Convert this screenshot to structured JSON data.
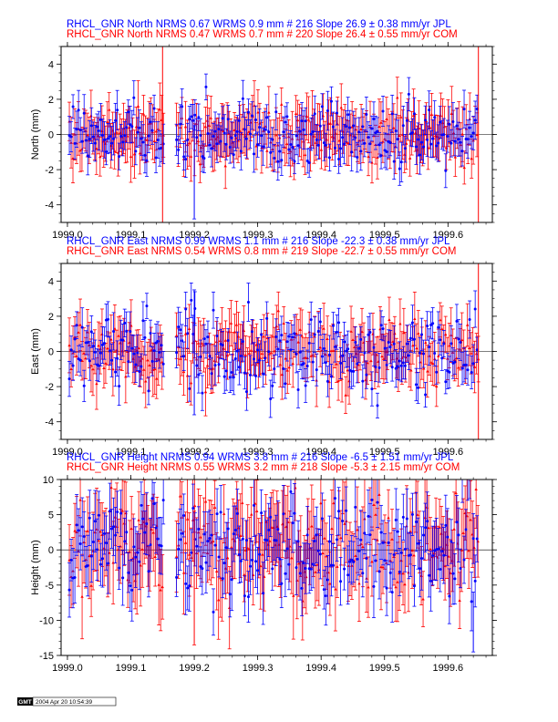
{
  "chart_data": [
    {
      "type": "scatter",
      "component": "North",
      "ylabel": "North (mm)",
      "xlim": [
        1998.99,
        1999.67
      ],
      "ylim": [
        -5,
        5
      ],
      "xticks": [
        "1999.0",
        "1999.1",
        "1999.2",
        "1999.3",
        "1999.4",
        "1999.5",
        "1999.6"
      ],
      "yticks": [
        "-4",
        "-2",
        "0",
        "2",
        "4"
      ],
      "series": [
        {
          "name": "JPL",
          "color": "#0000ff",
          "header": "RHCL_GNR North NRMS 0.67 WRMS  0.9 mm # 216 Slope   26.9 ±  0.38 mm/yr JPL",
          "n": 216,
          "wrms": 0.9,
          "sigma": 0.9,
          "x_start": 1999.003,
          "x_end": 1999.648,
          "gap": [
            1999.152,
            1999.172
          ]
        },
        {
          "name": "COM",
          "color": "#ff0000",
          "header": "RHCL_GNR North NRMS 0.47 WRMS  0.7 mm # 220 Slope   26.4 ±  0.55 mm/yr COM",
          "n": 220,
          "wrms": 0.7,
          "sigma": 1.25,
          "x_start": 1999.003,
          "x_end": 1999.648,
          "gap": [
            1999.152,
            1999.172
          ]
        }
      ],
      "outliers": [
        {
          "x": 1999.15,
          "series": "COM",
          "y_low": -5,
          "y_high": 5
        },
        {
          "x": 1999.648,
          "series": "COM",
          "y_low": -5,
          "y_high": 5
        },
        {
          "x": 1999.2,
          "series": "JPL",
          "y_low": -4.8,
          "y_high": 0.5
        }
      ]
    },
    {
      "type": "scatter",
      "component": "East",
      "ylabel": "East (mm)",
      "xlim": [
        1998.99,
        1999.67
      ],
      "ylim": [
        -5,
        5
      ],
      "xticks": [
        "1999.0",
        "1999.1",
        "1999.2",
        "1999.3",
        "1999.4",
        "1999.5",
        "1999.6"
      ],
      "yticks": [
        "-4",
        "-2",
        "0",
        "2",
        "4"
      ],
      "series": [
        {
          "name": "JPL",
          "color": "#0000ff",
          "header": "RHCL_GNR East NRMS 0.99 WRMS  1.1 mm # 216 Slope  -22.3 ±  0.38 mm/yr JPL",
          "n": 216,
          "wrms": 1.1,
          "sigma": 0.9,
          "x_start": 1999.003,
          "x_end": 1999.648,
          "gap": [
            1999.152,
            1999.172
          ]
        },
        {
          "name": "COM",
          "color": "#ff0000",
          "header": "RHCL_GNR East NRMS 0.54 WRMS  0.8 mm # 219 Slope  -22.7 ±  0.55 mm/yr COM",
          "n": 219,
          "wrms": 0.8,
          "sigma": 1.25,
          "x_start": 1999.003,
          "x_end": 1999.648,
          "gap": [
            1999.152,
            1999.172
          ]
        }
      ],
      "outliers": [
        {
          "x": 1999.648,
          "series": "COM",
          "y_low": -5,
          "y_high": 5
        },
        {
          "x": 1999.2,
          "series": "JPL",
          "y_low": -3.6,
          "y_high": 3.5
        }
      ]
    },
    {
      "type": "scatter",
      "component": "Height",
      "ylabel": "Height (mm)",
      "xlim": [
        1998.99,
        1999.67
      ],
      "ylim": [
        -15,
        10
      ],
      "xticks": [
        "1999.0",
        "1999.1",
        "1999.2",
        "1999.3",
        "1999.4",
        "1999.5",
        "1999.6"
      ],
      "yticks": [
        "-15",
        "-10",
        "-5",
        "0",
        "5",
        "10"
      ],
      "series": [
        {
          "name": "JPL",
          "color": "#0000ff",
          "header": "RHCL_GNR Height NRMS 0.94 WRMS  3.8 mm # 216 Slope   -6.5 ±  1.51 mm/yr JPL",
          "n": 216,
          "wrms": 3.8,
          "sigma": 3.6,
          "x_start": 1999.003,
          "x_end": 1999.648,
          "gap": [
            1999.152,
            1999.172
          ]
        },
        {
          "name": "COM",
          "color": "#ff0000",
          "header": "RHCL_GNR Height NRMS 0.55 WRMS  3.2 mm # 218 Slope   -5.3 ±  2.15 mm/yr COM",
          "n": 218,
          "wrms": 3.2,
          "sigma": 5.0,
          "x_start": 1999.003,
          "x_end": 1999.648,
          "gap": [
            1999.152,
            1999.172
          ]
        }
      ],
      "outliers": [
        {
          "x": 1999.2,
          "series": "COM",
          "y_low": -13.5,
          "y_high": 5.5
        },
        {
          "x": 1999.64,
          "series": "JPL",
          "y_low": -14.5,
          "y_high": -6
        }
      ]
    }
  ],
  "footer": {
    "logo": "GMT",
    "timestamp": "2004 Apr 20 10:54:39"
  }
}
